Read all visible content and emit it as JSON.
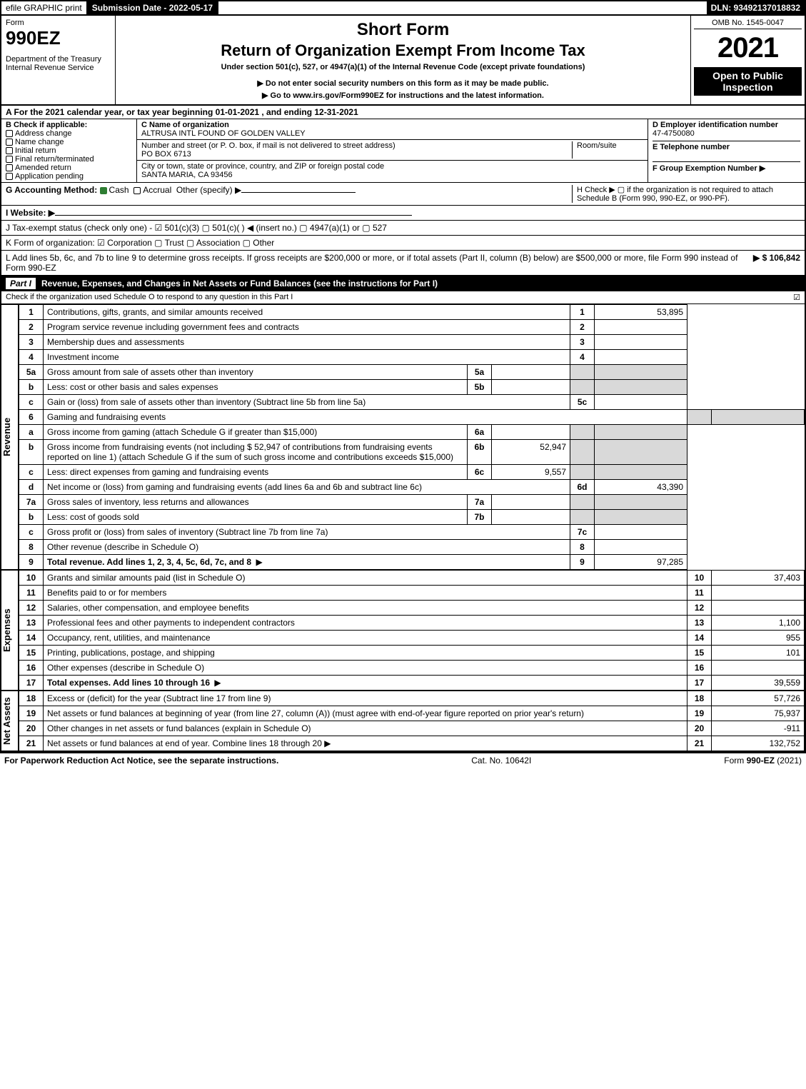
{
  "topbar": {
    "efile": "efile GRAPHIC print",
    "submission": "Submission Date - 2022-05-17",
    "dln": "DLN: 93492137018832"
  },
  "header": {
    "form_word": "Form",
    "form_number": "990EZ",
    "dept": "Department of the Treasury\nInternal Revenue Service",
    "title1": "Short Form",
    "title2": "Return of Organization Exempt From Income Tax",
    "sub": "Under section 501(c), 527, or 4947(a)(1) of the Internal Revenue Code (except private foundations)",
    "sub2a": "▶ Do not enter social security numbers on this form as it may be made public.",
    "sub2b": "▶ Go to www.irs.gov/Form990EZ for instructions and the latest information.",
    "omb": "OMB No. 1545-0047",
    "year": "2021",
    "badge1": "Open to Public",
    "badge2": "Inspection"
  },
  "A": "A  For the 2021 calendar year, or tax year beginning 01-01-2021 , and ending 12-31-2021",
  "B": {
    "label": "B  Check if applicable:",
    "items": [
      "Address change",
      "Name change",
      "Initial return",
      "Final return/terminated",
      "Amended return",
      "Application pending"
    ]
  },
  "C": {
    "name_label": "C Name of organization",
    "name": "ALTRUSA INTL FOUND OF GOLDEN VALLEY",
    "street_label": "Number and street (or P. O. box, if mail is not delivered to street address)",
    "room_label": "Room/suite",
    "street": "PO BOX 6713",
    "city_label": "City or town, state or province, country, and ZIP or foreign postal code",
    "city": "SANTA MARIA, CA  93456"
  },
  "D": {
    "label": "D Employer identification number",
    "ein": "47-4750080",
    "E_label": "E Telephone number",
    "F_label": "F Group Exemption Number  ▶"
  },
  "G": {
    "label": "G Accounting Method:",
    "cash": "Cash",
    "accrual": "Accrual",
    "other": "Other (specify) ▶"
  },
  "H": "H  Check ▶  ▢ if the organization is not required to attach Schedule B (Form 990, 990-EZ, or 990-PF).",
  "I": "I Website: ▶",
  "J": "J Tax-exempt status (check only one) - ☑ 501(c)(3)  ▢ 501(c)(  ) ◀ (insert no.)  ▢ 4947(a)(1) or  ▢ 527",
  "K": "K Form of organization:  ☑ Corporation  ▢ Trust  ▢ Association  ▢ Other",
  "L": {
    "text": "L Add lines 5b, 6c, and 7b to line 9 to determine gross receipts. If gross receipts are $200,000 or more, or if total assets (Part II, column (B) below) are $500,000 or more, file Form 990 instead of Form 990-EZ",
    "amount": "▶ $ 106,842"
  },
  "part1": {
    "label": "Part I",
    "title": "Revenue, Expenses, and Changes in Net Assets or Fund Balances (see the instructions for Part I)",
    "sub": "Check if the organization used Schedule O to respond to any question in this Part I",
    "checked": "☑"
  },
  "side_labels": {
    "rev": "Revenue",
    "exp": "Expenses",
    "na": "Net Assets"
  },
  "rows_rev": [
    {
      "n": "1",
      "d": "Contributions, gifts, grants, and similar amounts received",
      "ln": "1",
      "amt": "53,895"
    },
    {
      "n": "2",
      "d": "Program service revenue including government fees and contracts",
      "ln": "2",
      "amt": ""
    },
    {
      "n": "3",
      "d": "Membership dues and assessments",
      "ln": "3",
      "amt": ""
    },
    {
      "n": "4",
      "d": "Investment income",
      "ln": "4",
      "amt": ""
    },
    {
      "n": "5a",
      "d": "Gross amount from sale of assets other than inventory",
      "mini": "5a",
      "mval": "",
      "grey": true
    },
    {
      "n": "b",
      "d": "Less: cost or other basis and sales expenses",
      "mini": "5b",
      "mval": "",
      "grey": true
    },
    {
      "n": "c",
      "d": "Gain or (loss) from sale of assets other than inventory (Subtract line 5b from line 5a)",
      "ln": "5c",
      "amt": ""
    },
    {
      "n": "6",
      "d": "Gaming and fundraising events",
      "grey": true,
      "full": true
    },
    {
      "n": "a",
      "d": "Gross income from gaming (attach Schedule G if greater than $15,000)",
      "mini": "6a",
      "mval": "",
      "grey": true
    },
    {
      "n": "b",
      "d": "Gross income from fundraising events (not including $  52,947         of contributions from fundraising events reported on line 1) (attach Schedule G if the sum of such gross income and contributions exceeds $15,000)",
      "mini": "6b",
      "mval": "52,947",
      "grey": true
    },
    {
      "n": "c",
      "d": "Less: direct expenses from gaming and fundraising events",
      "mini": "6c",
      "mval": "9,557",
      "grey": true
    },
    {
      "n": "d",
      "d": "Net income or (loss) from gaming and fundraising events (add lines 6a and 6b and subtract line 6c)",
      "ln": "6d",
      "amt": "43,390"
    },
    {
      "n": "7a",
      "d": "Gross sales of inventory, less returns and allowances",
      "mini": "7a",
      "mval": "",
      "grey": true
    },
    {
      "n": "b",
      "d": "Less: cost of goods sold",
      "mini": "7b",
      "mval": "",
      "grey": true
    },
    {
      "n": "c",
      "d": "Gross profit or (loss) from sales of inventory (Subtract line 7b from line 7a)",
      "ln": "7c",
      "amt": ""
    },
    {
      "n": "8",
      "d": "Other revenue (describe in Schedule O)",
      "ln": "8",
      "amt": ""
    },
    {
      "n": "9",
      "d": "Total revenue. Add lines 1, 2, 3, 4, 5c, 6d, 7c, and 8",
      "ln": "9",
      "amt": "97,285",
      "b": true,
      "arrow": true
    }
  ],
  "rows_exp": [
    {
      "n": "10",
      "d": "Grants and similar amounts paid (list in Schedule O)",
      "ln": "10",
      "amt": "37,403"
    },
    {
      "n": "11",
      "d": "Benefits paid to or for members",
      "ln": "11",
      "amt": ""
    },
    {
      "n": "12",
      "d": "Salaries, other compensation, and employee benefits",
      "ln": "12",
      "amt": ""
    },
    {
      "n": "13",
      "d": "Professional fees and other payments to independent contractors",
      "ln": "13",
      "amt": "1,100"
    },
    {
      "n": "14",
      "d": "Occupancy, rent, utilities, and maintenance",
      "ln": "14",
      "amt": "955"
    },
    {
      "n": "15",
      "d": "Printing, publications, postage, and shipping",
      "ln": "15",
      "amt": "101"
    },
    {
      "n": "16",
      "d": "Other expenses (describe in Schedule O)",
      "ln": "16",
      "amt": ""
    },
    {
      "n": "17",
      "d": "Total expenses. Add lines 10 through 16",
      "ln": "17",
      "amt": "39,559",
      "b": true,
      "arrow": true
    }
  ],
  "rows_na": [
    {
      "n": "18",
      "d": "Excess or (deficit) for the year (Subtract line 17 from line 9)",
      "ln": "18",
      "amt": "57,726"
    },
    {
      "n": "19",
      "d": "Net assets or fund balances at beginning of year (from line 27, column (A)) (must agree with end-of-year figure reported on prior year's return)",
      "ln": "19",
      "amt": "75,937"
    },
    {
      "n": "20",
      "d": "Other changes in net assets or fund balances (explain in Schedule O)",
      "ln": "20",
      "amt": "-911"
    },
    {
      "n": "21",
      "d": "Net assets or fund balances at end of year. Combine lines 18 through 20",
      "ln": "21",
      "amt": "132,752",
      "arrow": true
    }
  ],
  "footer": {
    "left": "For Paperwork Reduction Act Notice, see the separate instructions.",
    "center": "Cat. No. 10642I",
    "right": "Form 990-EZ (2021)"
  }
}
